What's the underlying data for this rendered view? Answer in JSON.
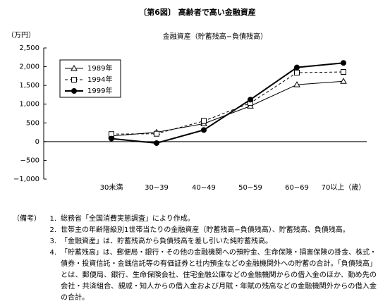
{
  "chart_data": {
    "type": "line",
    "title": "〔第6図〕 高齢者で高い金融資産",
    "subtitle": "金融資産（貯蓄残高−負債残高）",
    "y_unit": "（万円）",
    "categories": [
      "30未満",
      "30~39",
      "40~49",
      "50~59",
      "60~69",
      "70以上（歳）"
    ],
    "series": [
      {
        "name": "1989年",
        "color": "#000000",
        "marker": "triangle",
        "dash": "none",
        "values": [
          150,
          250,
          480,
          950,
          1520,
          1610
        ]
      },
      {
        "name": "1994年",
        "color": "#000000",
        "marker": "square",
        "dash": "4,3",
        "values": [
          200,
          210,
          550,
          1030,
          1840,
          1860
        ]
      },
      {
        "name": "1999年",
        "color": "#000000",
        "marker": "circle",
        "dash": "none",
        "values": [
          80,
          -40,
          310,
          1120,
          1980,
          2100
        ]
      }
    ],
    "ylim": [
      -1000,
      2500
    ],
    "yticks": [
      {
        "value": -1000,
        "label": "−1,000"
      },
      {
        "value": -500,
        "label": "−500"
      },
      0,
      500,
      {
        "value": 1000,
        "label": "1,000"
      },
      {
        "value": 1500,
        "label": "1,500"
      },
      {
        "value": 2000,
        "label": "2,000"
      },
      {
        "value": 2500,
        "label": "2,500"
      }
    ],
    "legend": "upper left",
    "grid": false
  },
  "notes": {
    "label": "（備考）",
    "items": [
      {
        "number": "1.",
        "lines": [
          "総務省「全国消費実態調査」により作成。"
        ]
      },
      {
        "number": "2.",
        "lines": [
          "世帯主の年齢階級別1世帯当たりの金融資産（貯蓄残高−負債残高）、貯蓄残高、負債残高。"
        ]
      },
      {
        "number": "3.",
        "lines": [
          "「金融資産」は、貯蓄残高から負債残高を差し引いた純貯蓄残高。"
        ]
      },
      {
        "number": "4.",
        "lines": [
          "「貯蓄残高」は、郵便局・銀行・その他の金融機関への預貯金、生命保険・損害保険の掛金、株式・",
          "債券・投資信託・金銭信託等の有価証券と社内預金などの金融機関外への貯蓄の合計。「負債残高」",
          "とは、郵便局、銀行、生命保険会社、住宅金融公庫などの金融機関からの借入金のほか、勤め先の",
          "会社・共済組合、親戚・知人からの借入金および月賦・年賦の残高などの金融機関外からの借入金",
          "の合計。"
        ]
      }
    ]
  }
}
